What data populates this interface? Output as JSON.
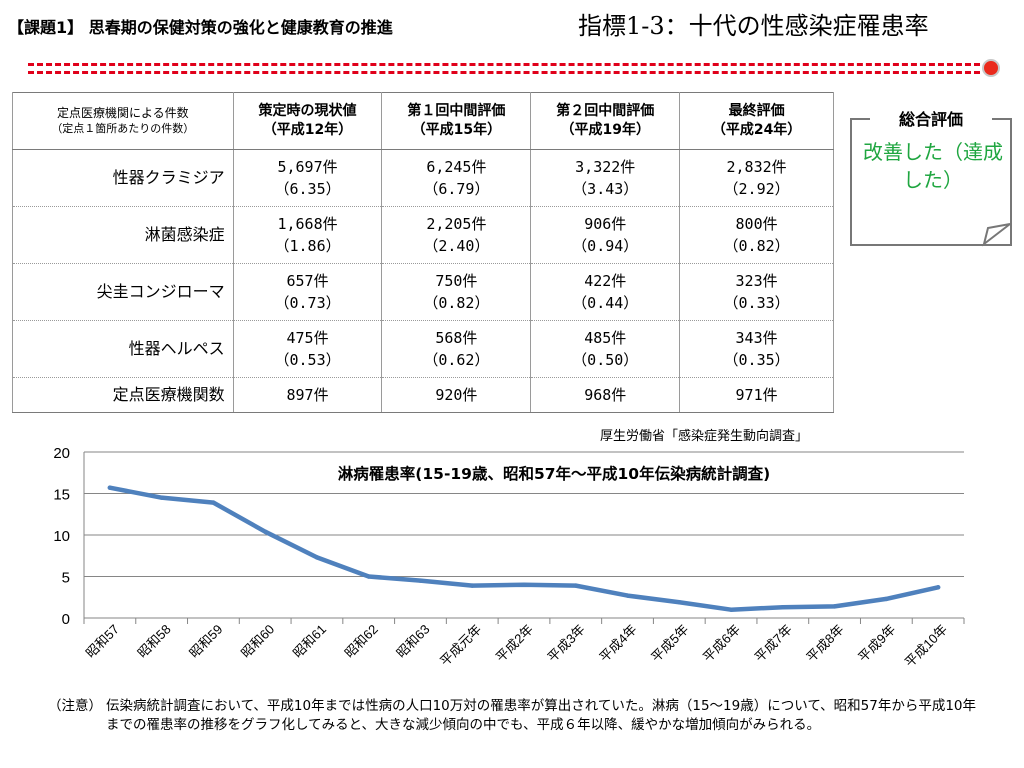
{
  "header": {
    "left_title": "【課題1】 思春期の保健対策の強化と健康教育の推進",
    "right_title": "指標1-3：十代の性感染症罹患率"
  },
  "table": {
    "headers": [
      {
        "line1": "定点医療機関による件数",
        "line2": "（定点１箇所あたりの件数）"
      },
      {
        "line1": "策定時の現状値",
        "line2": "（平成12年）"
      },
      {
        "line1": "第１回中間評価",
        "line2": "（平成15年）"
      },
      {
        "line1": "第２回中間評価",
        "line2": "（平成19年）"
      },
      {
        "line1": "最終評価",
        "line2": "（平成24年）"
      }
    ],
    "rows": [
      {
        "label": "性器クラミジア",
        "cells": [
          [
            "5,697件",
            "（6.35）"
          ],
          [
            "6,245件",
            "（6.79）"
          ],
          [
            "3,322件",
            "（3.43）"
          ],
          [
            "2,832件",
            "（2.92）"
          ]
        ]
      },
      {
        "label": "淋菌感染症",
        "cells": [
          [
            "1,668件",
            "（1.86）"
          ],
          [
            "2,205件",
            "（2.40）"
          ],
          [
            "906件",
            "（0.94）"
          ],
          [
            "800件",
            "（0.82）"
          ]
        ]
      },
      {
        "label": "尖圭コンジローマ",
        "cells": [
          [
            "657件",
            "（0.73）"
          ],
          [
            "750件",
            "（0.82）"
          ],
          [
            "422件",
            "（0.44）"
          ],
          [
            "323件",
            "（0.33）"
          ]
        ]
      },
      {
        "label": "性器ヘルペス",
        "cells": [
          [
            "475件",
            "（0.53）"
          ],
          [
            "568件",
            "（0.62）"
          ],
          [
            "485件",
            "（0.50）"
          ],
          [
            "343件",
            "（0.35）"
          ]
        ]
      },
      {
        "label": "定点医療機関数",
        "cells": [
          [
            "897件",
            ""
          ],
          [
            "920件",
            ""
          ],
          [
            "968件",
            ""
          ],
          [
            "971件",
            ""
          ]
        ]
      }
    ]
  },
  "evaluation": {
    "title": "総合評価",
    "result": "改善した（達成した）"
  },
  "source": "厚生労働省「感染症発生動向調査」",
  "chart_data": {
    "type": "line",
    "title": "淋病罹患率(15-19歳、昭和57年～平成10年伝染病統計調査)",
    "categories": [
      "昭和57",
      "昭和58",
      "昭和59",
      "昭和60",
      "昭和61",
      "昭和62",
      "昭和63",
      "平成元年",
      "平成2年",
      "平成3年",
      "平成4年",
      "平成5年",
      "平成6年",
      "平成7年",
      "平成8年",
      "平成9年",
      "平成10年"
    ],
    "series": [
      {
        "values": [
          15.7,
          14.5,
          13.9,
          10.4,
          7.3,
          5.0,
          4.5,
          3.9,
          4.0,
          3.9,
          2.7,
          1.9,
          1.0,
          1.3,
          1.4,
          2.3,
          3.7
        ]
      }
    ],
    "ylim": [
      0,
      20
    ],
    "yticks": [
      0,
      5,
      10,
      15,
      20
    ],
    "grid": true,
    "line_color": "#4f81bd"
  },
  "note": {
    "label": "（注意）",
    "text": "伝染病統計調査において、平成10年までは性病の人口10万対の罹患率が算出されていた。淋病（15～19歳）について、昭和57年から平成10年までの罹患率の推移をグラフ化してみると、大きな減少傾向の中でも、平成６年以降、緩やかな増加傾向がみられる。"
  },
  "colors": {
    "dashed_line": "#e0001a",
    "marker": "#ea2a1c",
    "evaluation_text": "#1fa640"
  }
}
